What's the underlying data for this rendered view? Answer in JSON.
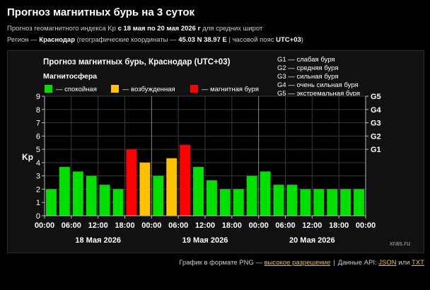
{
  "header": {
    "title": "Прогноз магнитных бурь на 3 суток",
    "line1_prefix": "Прогноз геомагнитного индекса Kp ",
    "line1_bold": "с 18 мая по 20 мая 2026 г",
    "line1_suffix": " для средних широт",
    "line2_prefix": "Регион — ",
    "line2_region": "Краснодар",
    "line2_mid": " (географические координаты — ",
    "line2_coords": "45.03 N 38.97 E",
    "line2_mid2": " | часовой пояс ",
    "line2_tz": "UTC+03",
    "line2_suffix": ")"
  },
  "chart_data": {
    "type": "bar",
    "title": "Прогноз магнитных бурь, Краснодар (UTC+03)",
    "legend_title": "Магнитосфера",
    "legend": [
      {
        "label": "— спокойная",
        "color": "#00e000"
      },
      {
        "label": "— возбужденная",
        "color": "#ffc000"
      },
      {
        "label": "— магнитная буря",
        "color": "#ff0000"
      }
    ],
    "g_legend": [
      "G1 — слабая буря",
      "G2 — средняя буря",
      "G3 — сильная буря",
      "G4 — очень сильная буря",
      "G5 — экстремальная буря"
    ],
    "ylabel": "Kp",
    "ylim": [
      0,
      9
    ],
    "yticks": [
      "0",
      "1",
      "2",
      "3",
      "4",
      "5",
      "6",
      "7",
      "8",
      "9"
    ],
    "right_ticks": [
      {
        "label": "G1",
        "value": 5
      },
      {
        "label": "G2",
        "value": 6
      },
      {
        "label": "G3",
        "value": 7
      },
      {
        "label": "G4",
        "value": 8
      },
      {
        "label": "G5",
        "value": 9
      }
    ],
    "xtick_labels": [
      "00:00",
      "06:00",
      "12:00",
      "18:00",
      "00:00",
      "06:00",
      "12:00",
      "18:00",
      "00:00",
      "06:00",
      "12:00",
      "18:00",
      "00:00"
    ],
    "days": [
      "18 Мая 2026",
      "19 Мая 2026",
      "20 Мая 2026"
    ],
    "values": [
      2.0,
      3.67,
      3.33,
      3.0,
      2.33,
      2.0,
      5.0,
      4.0,
      3.0,
      4.33,
      5.33,
      3.67,
      2.67,
      2.0,
      2.0,
      3.0,
      3.33,
      2.33,
      2.33,
      2.0,
      2.0,
      2.0,
      2.0,
      2.0
    ],
    "watermark": "xras.ru"
  },
  "footer": {
    "text1": "График в формате PNG — ",
    "link1": "высокое разрешение",
    "sep": "|",
    "text2": "Данные API: ",
    "link_json": "JSON",
    "or": " или ",
    "link_txt": "TXT"
  }
}
